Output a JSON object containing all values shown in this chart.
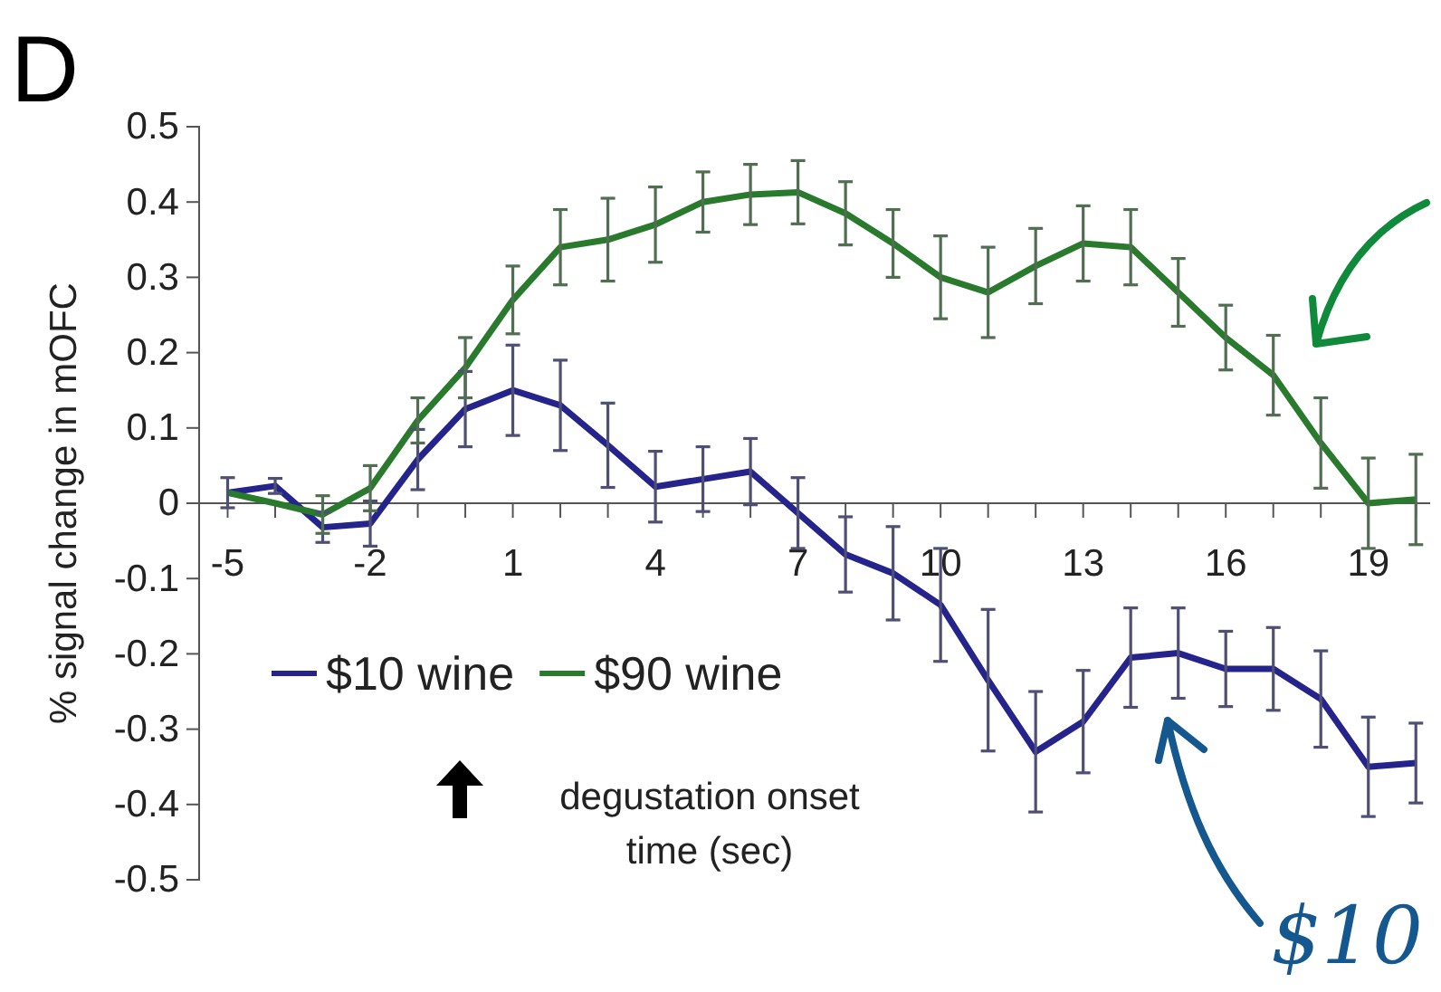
{
  "chart_data": {
    "type": "line",
    "title": "D",
    "xlabel": "degustation onset\ntime (sec)",
    "ylabel": "% signal change in mOFC",
    "x": [
      -5,
      -4,
      -3,
      -2,
      -1,
      0,
      1,
      2,
      3,
      4,
      5,
      6,
      7,
      8,
      9,
      10,
      11,
      12,
      13,
      14,
      15,
      16,
      17,
      18,
      19,
      20
    ],
    "xlim": [
      -5.6,
      20.3
    ],
    "ylim": [
      -0.5,
      0.5
    ],
    "xticks": [
      -5,
      {
        "value": -4,
        "label": null
      },
      {
        "value": -3,
        "label": null
      },
      -2,
      {
        "value": -1,
        "label": null
      },
      {
        "value": 0,
        "label": null
      },
      1,
      {
        "value": 2,
        "label": null
      },
      {
        "value": 3,
        "label": null
      },
      4,
      {
        "value": 5,
        "label": null
      },
      {
        "value": 6,
        "label": null
      },
      7,
      {
        "value": 8,
        "label": null
      },
      {
        "value": 9,
        "label": null
      },
      10,
      {
        "value": 11,
        "label": null
      },
      {
        "value": 12,
        "label": null
      },
      13,
      {
        "value": 14,
        "label": null
      },
      {
        "value": 15,
        "label": null
      },
      16,
      {
        "value": 17,
        "label": null
      },
      {
        "value": 18,
        "label": null
      },
      19,
      {
        "value": 20,
        "label": null
      }
    ],
    "yticks": [
      0.5,
      0.4,
      0.3,
      0.2,
      0.1,
      0,
      -0.1,
      -0.2,
      -0.3,
      -0.4,
      -0.5
    ],
    "series": [
      {
        "name": "$10 wine",
        "color": "#24248c",
        "values": [
          0.014,
          0.023,
          -0.032,
          -0.027,
          0.058,
          0.125,
          0.15,
          0.13,
          0.077,
          0.022,
          0.032,
          0.042,
          -0.013,
          -0.068,
          -0.093,
          -0.135,
          -0.235,
          -0.33,
          -0.29,
          -0.205,
          -0.199,
          -0.22,
          -0.22,
          -0.26,
          -0.35,
          -0.345
        ],
        "errors": [
          0.02,
          0.01,
          0.02,
          0.03,
          0.04,
          0.05,
          0.06,
          0.06,
          0.056,
          0.047,
          0.043,
          0.044,
          0.047,
          0.05,
          0.062,
          0.075,
          0.094,
          0.08,
          0.068,
          0.066,
          0.06,
          0.05,
          0.055,
          0.064,
          0.066,
          0.053
        ]
      },
      {
        "name": "$90 wine",
        "color": "#2a7a2e",
        "values": [
          0.014,
          0.0,
          -0.015,
          0.02,
          0.11,
          0.18,
          0.27,
          0.34,
          0.35,
          0.37,
          0.4,
          0.41,
          0.413,
          0.385,
          0.345,
          0.3,
          0.28,
          0.315,
          0.345,
          0.34,
          0.28,
          0.22,
          0.17,
          0.08,
          0.0,
          0.005
        ],
        "errors": [
          null,
          null,
          0.025,
          0.03,
          0.03,
          0.04,
          0.045,
          0.05,
          0.055,
          0.05,
          0.04,
          0.04,
          0.042,
          0.042,
          0.045,
          0.055,
          0.06,
          0.05,
          0.05,
          0.05,
          0.045,
          0.043,
          0.053,
          0.06,
          0.06,
          0.06
        ]
      }
    ],
    "legend": "bottom left",
    "marker": "none",
    "line_style": "solid",
    "grid": false,
    "annotations": [
      "$10"
    ]
  }
}
